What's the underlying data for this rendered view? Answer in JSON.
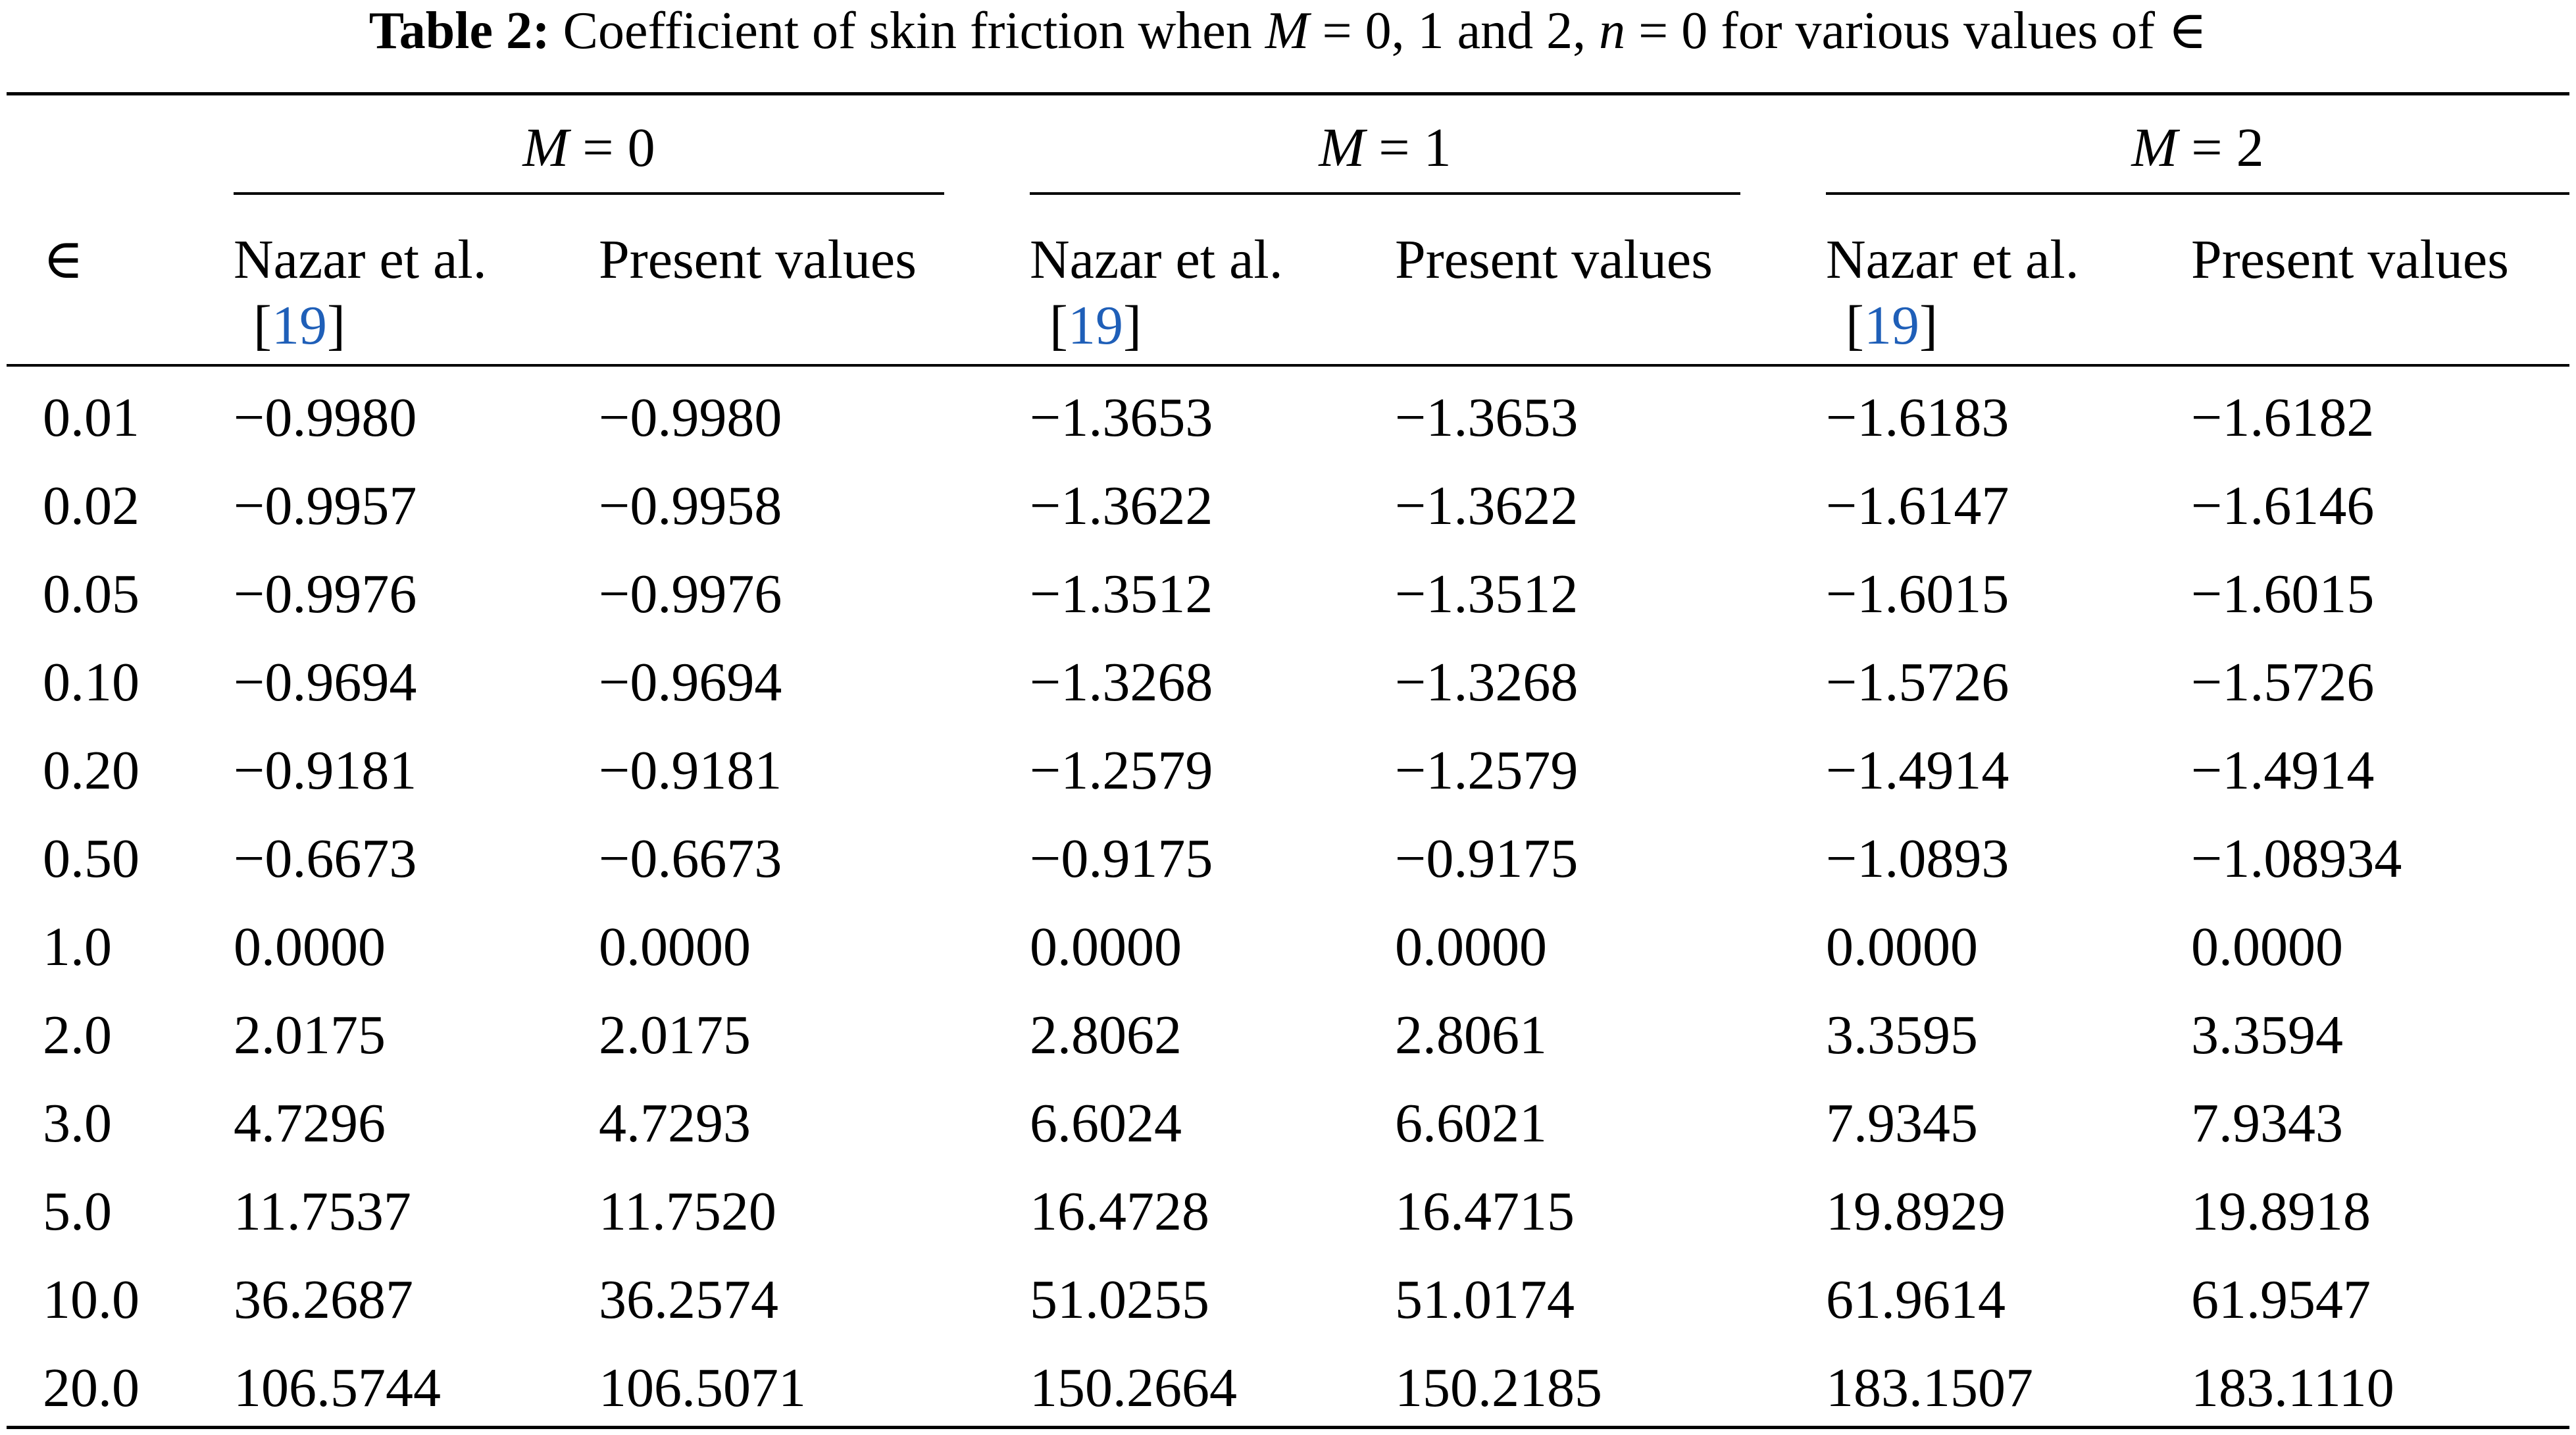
{
  "caption": {
    "label": "Table 2:",
    "text_1": " Coefficient of skin friction when ",
    "var_m": "M",
    "text_2": " = 0, 1 and 2, ",
    "var_n": "n",
    "text_3": " = 0 for various values of ∈"
  },
  "table": {
    "epsilon_header": "∈",
    "groups": [
      {
        "var": "M",
        "eq": " = 0"
      },
      {
        "var": "M",
        "eq": " = 1"
      },
      {
        "var": "M",
        "eq": " = 2"
      }
    ],
    "sub_headers": {
      "nazar_line1": "Nazar et al.",
      "nazar_ref_open": "[",
      "nazar_ref_num": "19",
      "nazar_ref_close": "]",
      "present": "Present values"
    },
    "rows": [
      [
        "0.01",
        "−0.9980",
        "−0.9980",
        "−1.3653",
        "−1.3653",
        "−1.6183",
        "−1.6182"
      ],
      [
        "0.02",
        "−0.9957",
        "−0.9958",
        "−1.3622",
        "−1.3622",
        "−1.6147",
        "−1.6146"
      ],
      [
        "0.05",
        "−0.9976",
        "−0.9976",
        "−1.3512",
        "−1.3512",
        "−1.6015",
        "−1.6015"
      ],
      [
        "0.10",
        "−0.9694",
        "−0.9694",
        "−1.3268",
        "−1.3268",
        "−1.5726",
        "−1.5726"
      ],
      [
        "0.20",
        "−0.9181",
        "−0.9181",
        "−1.2579",
        "−1.2579",
        "−1.4914",
        "−1.4914"
      ],
      [
        "0.50",
        "−0.6673",
        "−0.6673",
        "−0.9175",
        "−0.9175",
        "−1.0893",
        "−1.08934"
      ],
      [
        "1.0",
        "0.0000",
        "0.0000",
        "0.0000",
        "0.0000",
        "0.0000",
        "0.0000"
      ],
      [
        "2.0",
        "2.0175",
        "2.0175",
        "2.8062",
        "2.8061",
        "3.3595",
        "3.3594"
      ],
      [
        "3.0",
        "4.7296",
        "4.7293",
        "6.6024",
        "6.6021",
        "7.9345",
        "7.9343"
      ],
      [
        "5.0",
        "11.7537",
        "11.7520",
        "16.4728",
        "16.4715",
        "19.8929",
        "19.8918"
      ],
      [
        "10.0",
        "36.2687",
        "36.2574",
        "51.0255",
        "51.0174",
        "61.9614",
        "61.9547"
      ],
      [
        "20.0",
        "106.5744",
        "106.5071",
        "150.2664",
        "150.2185",
        "183.1507",
        "183.1110"
      ]
    ]
  },
  "colors": {
    "text": "#000000",
    "reference_link": "#1f5fb8",
    "background": "#ffffff"
  }
}
